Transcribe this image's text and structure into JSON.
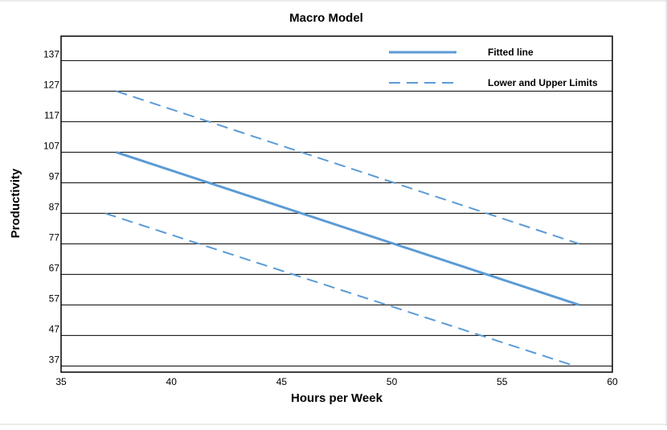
{
  "chart_data": {
    "type": "line",
    "title": "Macro Model",
    "xlabel": "Hours per Week",
    "ylabel": "Productivity",
    "xlim": [
      35,
      60
    ],
    "ylim": [
      35,
      145
    ],
    "x_ticks": [
      35,
      40,
      45,
      50,
      55,
      60
    ],
    "y_ticks": [
      37,
      47,
      57,
      67,
      77,
      87,
      97,
      107,
      117,
      127,
      137
    ],
    "grid": "horizontal",
    "legend_position": "top-right",
    "series_color": "#5b9bd5",
    "legend": [
      {
        "label": "Fitted line",
        "style": "solid"
      },
      {
        "label": "Lower and Upper Limits",
        "style": "dashed"
      }
    ],
    "series": [
      {
        "name": "Fitted line",
        "style": "solid",
        "x": [
          37.5,
          58.5
        ],
        "y": [
          107,
          57
        ]
      },
      {
        "name": "Upper Limit",
        "style": "dashed",
        "x": [
          37.5,
          58.5
        ],
        "y": [
          127,
          77
        ]
      },
      {
        "name": "Lower Limit",
        "style": "dashed",
        "x": [
          37.0,
          58.3
        ],
        "y": [
          87,
          37
        ]
      }
    ]
  }
}
